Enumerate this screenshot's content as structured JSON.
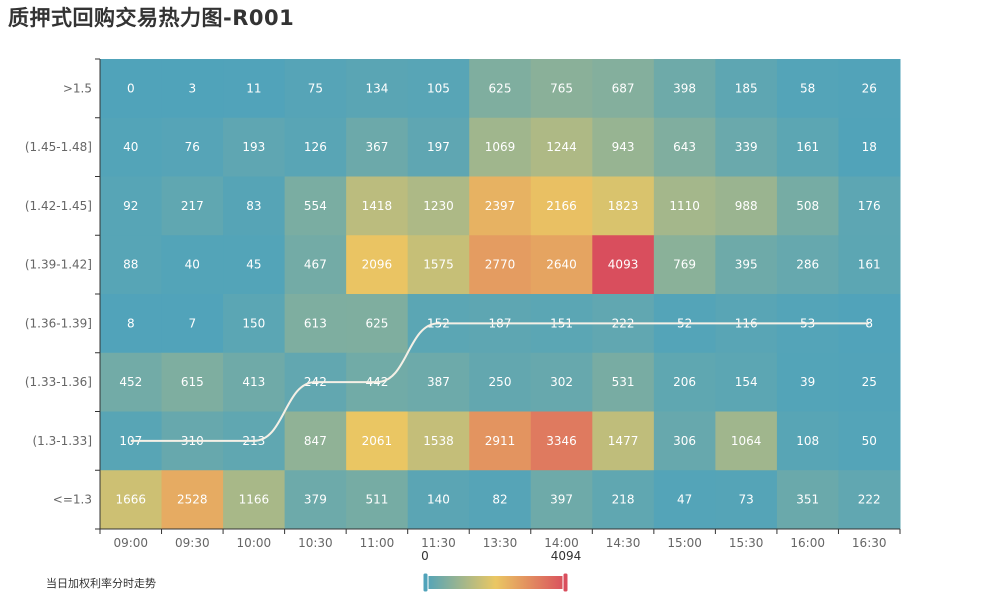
{
  "title": "质押式回购交易热力图-R001",
  "legend_label": "当日加权利率分时走势",
  "chart_data": {
    "type": "heatmap",
    "title": "质押式回购交易热力图-R001",
    "x_categories": [
      "09:00",
      "09:30",
      "10:00",
      "10:30",
      "11:00",
      "11:30",
      "13:30",
      "14:00",
      "14:30",
      "15:00",
      "15:30",
      "16:00",
      "16:30"
    ],
    "y_categories": [
      ">1.5",
      "(1.45-1.48]",
      "(1.42-1.45]",
      "(1.39-1.42]",
      "(1.36-1.39]",
      "(1.33-1.36]",
      "(1.3-1.33]",
      "<=1.3"
    ],
    "values": [
      [
        0,
        3,
        11,
        75,
        134,
        105,
        625,
        765,
        687,
        398,
        185,
        58,
        26
      ],
      [
        40,
        76,
        193,
        126,
        367,
        197,
        1069,
        1244,
        943,
        643,
        339,
        161,
        18
      ],
      [
        92,
        217,
        83,
        554,
        1418,
        1230,
        2397,
        2166,
        1823,
        1110,
        988,
        508,
        176
      ],
      [
        88,
        40,
        45,
        467,
        2096,
        1575,
        2770,
        2640,
        4093,
        769,
        395,
        286,
        161
      ],
      [
        8,
        7,
        150,
        613,
        625,
        152,
        187,
        151,
        222,
        52,
        116,
        53,
        8
      ],
      [
        452,
        615,
        413,
        242,
        442,
        387,
        250,
        302,
        531,
        206,
        154,
        39,
        25
      ],
      [
        107,
        310,
        213,
        847,
        2061,
        1538,
        2911,
        3346,
        1477,
        306,
        1064,
        108,
        50
      ],
      [
        1666,
        2528,
        1166,
        379,
        511,
        140,
        82,
        397,
        218,
        47,
        73,
        351,
        222
      ]
    ],
    "visual_map": {
      "min": 0,
      "max": 4094,
      "colors": [
        "#50a3ba",
        "#eac763",
        "#d94e5d"
      ]
    },
    "line_series": {
      "name": "当日加权利率分时走势",
      "color": "#f5f0e6",
      "values": [
        "(1.3-1.33]",
        "(1.3-1.33]",
        "(1.3-1.33]",
        "(1.33-1.36]",
        "(1.33-1.36]",
        "(1.36-1.39]",
        "(1.36-1.39]",
        "(1.36-1.39]",
        "(1.36-1.39]",
        "(1.36-1.39]",
        "(1.36-1.39]",
        "(1.36-1.39]",
        "(1.36-1.39]"
      ]
    },
    "grid": false
  }
}
